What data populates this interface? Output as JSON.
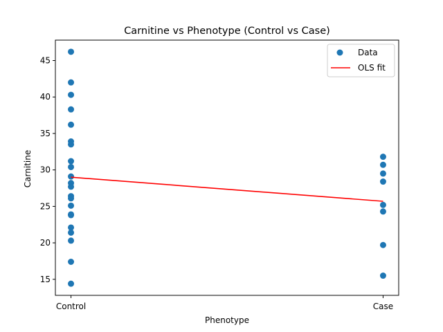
{
  "chart_data": {
    "type": "scatter",
    "title": "Carnitine vs Phenotype (Control vs Case)",
    "xlabel": "Phenotype",
    "ylabel": "Carnitine",
    "categories": [
      "Control",
      "Case"
    ],
    "xlim": [
      -0.05,
      1.05
    ],
    "ylim": [
      12.8,
      47.8
    ],
    "yticks": [
      15,
      20,
      25,
      30,
      35,
      40,
      45
    ],
    "grid": false,
    "legend_position": "top-right",
    "series": [
      {
        "name": "Data",
        "kind": "scatter",
        "color": "#1f77b4",
        "points": [
          {
            "x": 0,
            "y": 46.2
          },
          {
            "x": 0,
            "y": 42.0
          },
          {
            "x": 0,
            "y": 40.3
          },
          {
            "x": 0,
            "y": 38.3
          },
          {
            "x": 0,
            "y": 36.2
          },
          {
            "x": 0,
            "y": 33.9
          },
          {
            "x": 0,
            "y": 33.5
          },
          {
            "x": 0,
            "y": 31.2
          },
          {
            "x": 0,
            "y": 30.4
          },
          {
            "x": 0,
            "y": 29.1
          },
          {
            "x": 0,
            "y": 28.2
          },
          {
            "x": 0,
            "y": 27.7
          },
          {
            "x": 0,
            "y": 26.4
          },
          {
            "x": 0,
            "y": 26.1
          },
          {
            "x": 0,
            "y": 25.1
          },
          {
            "x": 0,
            "y": 23.9
          },
          {
            "x": 0,
            "y": 23.8
          },
          {
            "x": 0,
            "y": 22.1
          },
          {
            "x": 0,
            "y": 21.4
          },
          {
            "x": 0,
            "y": 20.3
          },
          {
            "x": 0,
            "y": 17.4
          },
          {
            "x": 0,
            "y": 14.4
          },
          {
            "x": 1,
            "y": 31.8
          },
          {
            "x": 1,
            "y": 30.7
          },
          {
            "x": 1,
            "y": 29.5
          },
          {
            "x": 1,
            "y": 28.4
          },
          {
            "x": 1,
            "y": 25.2
          },
          {
            "x": 1,
            "y": 24.3
          },
          {
            "x": 1,
            "y": 19.7
          },
          {
            "x": 1,
            "y": 15.5
          }
        ]
      },
      {
        "name": "OLS fit",
        "kind": "line",
        "color": "#ff0000",
        "points": [
          {
            "x": 0,
            "y": 29.0
          },
          {
            "x": 1,
            "y": 25.7
          }
        ]
      }
    ]
  }
}
